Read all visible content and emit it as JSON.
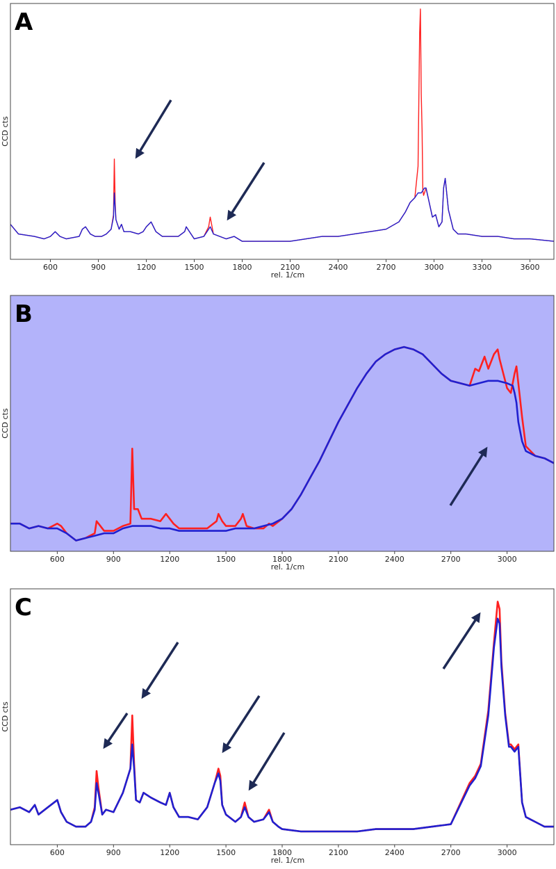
{
  "chart_data": [
    {
      "type": "line",
      "panel": "A",
      "xlabel": "rel. 1/cm",
      "ylabel": "CCD cts",
      "xlim": [
        350,
        3750
      ],
      "ylim": [
        0,
        100
      ],
      "xticks": [
        600,
        900,
        1200,
        1500,
        1800,
        2100,
        2400,
        2700,
        3000,
        3300,
        3600
      ],
      "background": "#ffffff",
      "series": [
        {
          "color": "#ff2020",
          "x": [
            350,
            400,
            500,
            560,
            600,
            630,
            660,
            700,
            780,
            800,
            820,
            850,
            880,
            920,
            950,
            980,
            995,
            1000,
            1005,
            1010,
            1030,
            1045,
            1060,
            1100,
            1150,
            1180,
            1200,
            1230,
            1260,
            1300,
            1350,
            1400,
            1440,
            1450,
            1470,
            1500,
            1560,
            1590,
            1600,
            1620,
            1660,
            1700,
            1750,
            1800,
            1900,
            2000,
            2100,
            2200,
            2300,
            2400,
            2500,
            2600,
            2700,
            2780,
            2820,
            2850,
            2880,
            2900,
            2910,
            2915,
            2920,
            2925,
            2930,
            2935,
            2940,
            2950,
            2970,
            2990,
            3010,
            3030,
            3050,
            3060,
            3070,
            3090,
            3120,
            3150,
            3200,
            3300,
            3400,
            3500,
            3600,
            3750
          ],
          "y": [
            11,
            7,
            6,
            5,
            6,
            8,
            6,
            5,
            6,
            9,
            10,
            7,
            6,
            6,
            7,
            9,
            15,
            38,
            20,
            13,
            9,
            11,
            8,
            8,
            7,
            8,
            10,
            12,
            8,
            6,
            6,
            6,
            8,
            10,
            8,
            5,
            6,
            10,
            14,
            7,
            6,
            5,
            6,
            4,
            4,
            4,
            4,
            5,
            6,
            6,
            7,
            8,
            9,
            12,
            16,
            20,
            22,
            35,
            90,
            100,
            65,
            50,
            25,
            23,
            24,
            26,
            20,
            14,
            15,
            10,
            12,
            26,
            30,
            17,
            9,
            7,
            7,
            6,
            6,
            5,
            5,
            4
          ]
        },
        {
          "color": "#2020d0",
          "x": [
            350,
            400,
            500,
            560,
            600,
            630,
            660,
            700,
            780,
            800,
            820,
            850,
            880,
            920,
            950,
            980,
            995,
            1000,
            1005,
            1010,
            1030,
            1045,
            1060,
            1100,
            1150,
            1180,
            1200,
            1230,
            1260,
            1300,
            1350,
            1400,
            1440,
            1450,
            1470,
            1500,
            1560,
            1590,
            1600,
            1620,
            1660,
            1700,
            1750,
            1800,
            1900,
            2000,
            2100,
            2200,
            2300,
            2400,
            2500,
            2600,
            2700,
            2780,
            2820,
            2850,
            2880,
            2900,
            2920,
            2940,
            2950,
            2970,
            2990,
            3010,
            3030,
            3050,
            3060,
            3070,
            3090,
            3120,
            3150,
            3200,
            3300,
            3400,
            3500,
            3600,
            3750
          ],
          "y": [
            11,
            7,
            6,
            5,
            6,
            8,
            6,
            5,
            6,
            9,
            10,
            7,
            6,
            6,
            7,
            9,
            14,
            24,
            18,
            13,
            9,
            11,
            8,
            8,
            7,
            8,
            10,
            12,
            8,
            6,
            6,
            6,
            8,
            10,
            8,
            5,
            6,
            9,
            10,
            7,
            6,
            5,
            6,
            4,
            4,
            4,
            4,
            5,
            6,
            6,
            7,
            8,
            9,
            12,
            16,
            20,
            22,
            24,
            24,
            26,
            26,
            20,
            14,
            15,
            10,
            12,
            26,
            30,
            17,
            9,
            7,
            7,
            6,
            6,
            5,
            5,
            4
          ]
        }
      ]
    },
    {
      "type": "line",
      "panel": "B",
      "xlabel": "rel. 1/cm",
      "ylabel": "CCD cts",
      "xlim": [
        350,
        3250
      ],
      "ylim": [
        0,
        100
      ],
      "xticks": [
        600,
        900,
        1200,
        1500,
        1800,
        2100,
        2400,
        2700,
        3000
      ],
      "background": "#b3b3fa",
      "series": [
        {
          "color": "#ff2020",
          "x": [
            350,
            400,
            450,
            500,
            550,
            600,
            620,
            650,
            700,
            750,
            800,
            810,
            830,
            850,
            900,
            950,
            990,
            1000,
            1010,
            1030,
            1050,
            1100,
            1150,
            1180,
            1200,
            1220,
            1250,
            1300,
            1350,
            1400,
            1450,
            1460,
            1480,
            1500,
            1550,
            1580,
            1590,
            1610,
            1650,
            1700,
            1730,
            1750,
            1800,
            1850,
            1900,
            1950,
            2000,
            2050,
            2100,
            2150,
            2200,
            2250,
            2300,
            2350,
            2400,
            2450,
            2500,
            2550,
            2600,
            2650,
            2700,
            2750,
            2800,
            2830,
            2850,
            2880,
            2900,
            2930,
            2950,
            2960,
            2980,
            3000,
            3020,
            3040,
            3050,
            3060,
            3080,
            3100,
            3150,
            3200,
            3250
          ],
          "y": [
            8,
            8,
            6,
            7,
            6,
            8,
            7,
            4,
            1,
            2,
            4,
            9,
            7,
            5,
            5,
            7,
            8,
            39,
            14,
            14,
            10,
            10,
            9,
            12,
            10,
            8,
            6,
            6,
            6,
            6,
            9,
            12,
            9,
            7,
            7,
            10,
            12,
            7,
            6,
            6,
            8,
            7,
            10,
            14,
            20,
            27,
            34,
            42,
            50,
            57,
            64,
            70,
            75,
            78,
            80,
            81,
            80,
            78,
            74,
            70,
            67,
            66,
            65,
            72,
            71,
            77,
            72,
            78,
            80,
            76,
            70,
            64,
            62,
            70,
            73,
            66,
            52,
            40,
            36,
            35,
            33
          ]
        },
        {
          "color": "#2020d0",
          "x": [
            350,
            400,
            450,
            500,
            550,
            600,
            650,
            700,
            750,
            800,
            850,
            900,
            950,
            1000,
            1050,
            1100,
            1150,
            1200,
            1250,
            1300,
            1350,
            1400,
            1450,
            1500,
            1550,
            1600,
            1650,
            1700,
            1750,
            1800,
            1850,
            1900,
            1950,
            2000,
            2050,
            2100,
            2150,
            2200,
            2250,
            2300,
            2350,
            2400,
            2450,
            2500,
            2550,
            2600,
            2650,
            2700,
            2750,
            2800,
            2850,
            2900,
            2950,
            3000,
            3030,
            3040,
            3050,
            3060,
            3080,
            3100,
            3150,
            3200,
            3250
          ],
          "y": [
            8,
            8,
            6,
            7,
            6,
            6,
            4,
            1,
            2,
            3,
            4,
            4,
            6,
            7,
            7,
            7,
            6,
            6,
            5,
            5,
            5,
            5,
            5,
            5,
            6,
            6,
            6,
            7,
            8,
            10,
            14,
            20,
            27,
            34,
            42,
            50,
            57,
            64,
            70,
            75,
            78,
            80,
            81,
            80,
            78,
            74,
            70,
            67,
            66,
            65,
            66,
            67,
            67,
            66,
            65,
            62,
            58,
            50,
            42,
            38,
            36,
            35,
            33
          ]
        }
      ]
    },
    {
      "type": "line",
      "panel": "C",
      "xlabel": "rel. 1/cm",
      "ylabel": "CCD cts",
      "xlim": [
        350,
        3250
      ],
      "ylim": [
        0,
        100
      ],
      "xticks": [
        600,
        900,
        1200,
        1500,
        1800,
        2100,
        2400,
        2700,
        3000
      ],
      "background": "#ffffff",
      "series": [
        {
          "color": "#ff2020",
          "x": [
            350,
            400,
            450,
            480,
            500,
            550,
            600,
            620,
            650,
            700,
            750,
            780,
            800,
            810,
            820,
            840,
            860,
            900,
            950,
            990,
            1000,
            1010,
            1020,
            1040,
            1060,
            1100,
            1150,
            1180,
            1200,
            1220,
            1250,
            1300,
            1350,
            1400,
            1440,
            1460,
            1470,
            1480,
            1500,
            1550,
            1580,
            1600,
            1620,
            1650,
            1700,
            1730,
            1750,
            1780,
            1800,
            1900,
            2000,
            2100,
            2200,
            2300,
            2400,
            2500,
            2600,
            2700,
            2800,
            2830,
            2860,
            2900,
            2930,
            2950,
            2960,
            2970,
            2990,
            3010,
            3020,
            3040,
            3060,
            3080,
            3100,
            3150,
            3200,
            3250
          ],
          "y": [
            11,
            12,
            10,
            13,
            9,
            12,
            15,
            10,
            6,
            4,
            4,
            6,
            12,
            27,
            20,
            9,
            11,
            10,
            18,
            28,
            50,
            30,
            15,
            14,
            18,
            16,
            14,
            13,
            18,
            12,
            8,
            8,
            7,
            12,
            22,
            28,
            25,
            13,
            9,
            6,
            8,
            14,
            8,
            6,
            7,
            11,
            6,
            4,
            3,
            2,
            2,
            2,
            2,
            3,
            3,
            3,
            4,
            5,
            22,
            25,
            30,
            52,
            80,
            97,
            94,
            72,
            51,
            38,
            38,
            36,
            38,
            14,
            8,
            6,
            4,
            4
          ]
        },
        {
          "color": "#2020d0",
          "x": [
            350,
            400,
            450,
            480,
            500,
            550,
            600,
            620,
            650,
            700,
            750,
            780,
            800,
            810,
            820,
            840,
            860,
            900,
            950,
            990,
            1000,
            1010,
            1020,
            1040,
            1060,
            1100,
            1150,
            1180,
            1200,
            1220,
            1250,
            1300,
            1350,
            1400,
            1440,
            1460,
            1470,
            1480,
            1500,
            1550,
            1580,
            1600,
            1620,
            1650,
            1700,
            1730,
            1750,
            1780,
            1800,
            1900,
            2000,
            2100,
            2200,
            2300,
            2400,
            2500,
            2600,
            2700,
            2800,
            2830,
            2860,
            2900,
            2930,
            2950,
            2960,
            2970,
            2990,
            3010,
            3020,
            3040,
            3060,
            3080,
            3100,
            3150,
            3200,
            3250
          ],
          "y": [
            11,
            12,
            10,
            13,
            9,
            12,
            15,
            10,
            6,
            4,
            4,
            6,
            11,
            22,
            18,
            9,
            11,
            10,
            18,
            28,
            38,
            28,
            15,
            14,
            18,
            16,
            14,
            13,
            18,
            12,
            8,
            8,
            7,
            12,
            22,
            26,
            23,
            13,
            9,
            6,
            8,
            12,
            8,
            6,
            7,
            10,
            6,
            4,
            3,
            2,
            2,
            2,
            2,
            3,
            3,
            3,
            4,
            5,
            21,
            24,
            29,
            50,
            78,
            90,
            88,
            70,
            50,
            37,
            37,
            35,
            37,
            14,
            8,
            6,
            4,
            4
          ]
        }
      ]
    }
  ]
}
